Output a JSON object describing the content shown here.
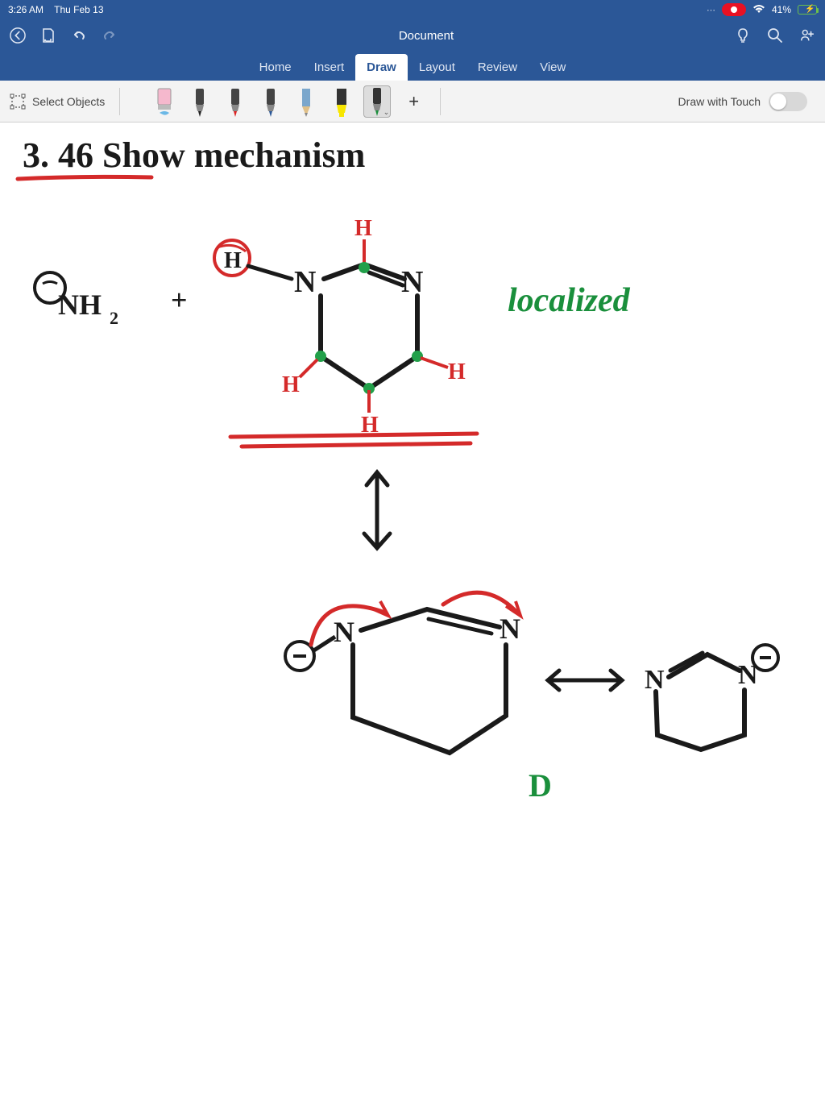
{
  "status": {
    "time": "3:26 AM",
    "date": "Thu Feb 13",
    "battery_pct": "41%"
  },
  "titlebar": {
    "doc_name": "Document"
  },
  "ribbon": {
    "tabs": [
      "Home",
      "Insert",
      "Draw",
      "Layout",
      "Review",
      "View"
    ],
    "active_index": 2
  },
  "toolbar": {
    "select_label": "Select Objects",
    "draw_touch_label": "Draw with Touch",
    "pens": [
      {
        "type": "eraser",
        "tip": "#f5b8cd",
        "body": "#fff",
        "selected": false
      },
      {
        "type": "pen",
        "tip": "#222",
        "body": "#444",
        "selected": false
      },
      {
        "type": "pen",
        "tip": "#d22",
        "body": "#444",
        "selected": false
      },
      {
        "type": "pen",
        "tip": "#2b5797",
        "body": "#444",
        "selected": false
      },
      {
        "type": "pencil",
        "tip": "#888",
        "body": "#7ba7cc",
        "selected": false
      },
      {
        "type": "highlighter",
        "tip": "#f7e600",
        "body": "#333",
        "selected": false
      },
      {
        "type": "pen",
        "tip": "#1a8f3c",
        "body": "#333",
        "selected": true
      }
    ]
  },
  "drawing": {
    "colors": {
      "black": "#1a1a1a",
      "red": "#d42a2a",
      "green": "#1a8f3c",
      "green_dot": "#22a04a"
    },
    "title_text": "3. 46  Show  mechanism",
    "side_label": "localized",
    "letter": "D",
    "h_labels": [
      "H",
      "H",
      "H",
      "H",
      "H",
      "H"
    ],
    "n_labels": [
      "N",
      "N",
      "N",
      "N",
      "N",
      "N"
    ],
    "nh2": "NH",
    "nh2_sub": "2",
    "plus": "+"
  }
}
